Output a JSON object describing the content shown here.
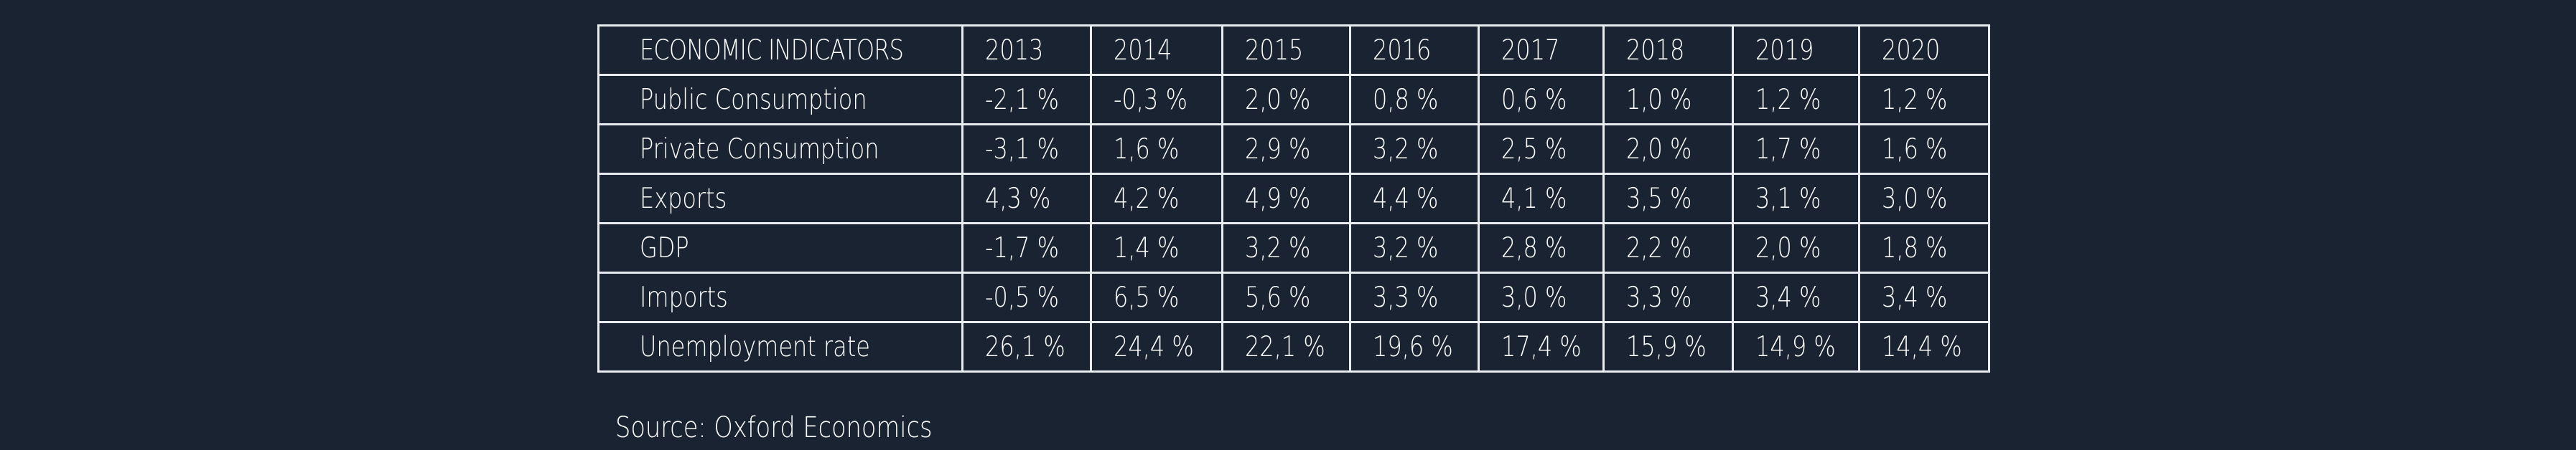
{
  "chart_data": {
    "type": "table",
    "columns": [
      "ECONOMIC INDICATORS",
      "2013",
      "2014",
      "2015",
      "2016",
      "2017",
      "2018",
      "2019",
      "2020"
    ],
    "rows": [
      {
        "label": "Public Consumption",
        "values": [
          "-2,1 %",
          "-0,3 %",
          "2,0 %",
          "0,8 %",
          "0,6 %",
          "1,0 %",
          "1,2 %",
          "1,2 %"
        ]
      },
      {
        "label": "Private Consumption",
        "values": [
          "-3,1 %",
          "1,6 %",
          "2,9 %",
          "3,2 %",
          "2,5 %",
          "2,0 %",
          "1,7 %",
          "1,6 %"
        ]
      },
      {
        "label": "Exports",
        "values": [
          "4,3 %",
          "4,2 %",
          "4,9 %",
          "4,4 %",
          "4,1 %",
          "3,5 %",
          "3,1 %",
          "3,0 %"
        ]
      },
      {
        "label": "GDP",
        "values": [
          "-1,7 %",
          "1,4 %",
          "3,2 %",
          "3,2 %",
          "2,8 %",
          "2,2 %",
          "2,0 %",
          "1,8 %"
        ]
      },
      {
        "label": "Imports",
        "values": [
          "-0,5 %",
          "6,5 %",
          "5,6 %",
          "3,3 %",
          "3,0 %",
          "3,3 %",
          "3,4 %",
          "3,4 %"
        ]
      },
      {
        "label": "Unemployment rate",
        "values": [
          "26,1 %",
          "24,4 %",
          "22,1 %",
          "19,6 %",
          "17,4 %",
          "15,9 %",
          "14,9 %",
          "14,4 %"
        ]
      }
    ],
    "source": "Source: Oxford Economics"
  },
  "colors": {
    "background": "#192331",
    "grid": "#e9edf2",
    "text": "#ffffff"
  }
}
